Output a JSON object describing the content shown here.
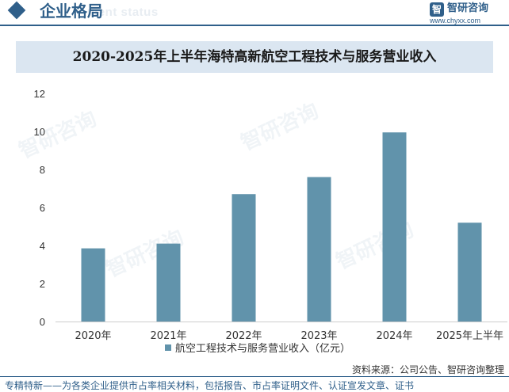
{
  "header": {
    "title": "企业格局",
    "subtitle": "ment status",
    "logo_name": "智研咨询",
    "logo_url": "www.chyxx.com",
    "logo_mark": "智"
  },
  "watermark": "智研咨询",
  "chart_data": {
    "type": "bar",
    "title": "2020-2025年上半年海特高新航空工程技术与服务营业收入",
    "categories": [
      "2020年",
      "2021年",
      "2022年",
      "2023年",
      "2024年",
      "2025年上半年"
    ],
    "series": [
      {
        "name": "航空工程技术与服务营业收入（亿元）",
        "values": [
          3.85,
          4.1,
          6.7,
          7.6,
          9.95,
          5.2
        ]
      }
    ],
    "ylim": [
      0,
      12
    ],
    "yticks": [
      "0",
      "2",
      "4",
      "6",
      "8",
      "10",
      "12"
    ],
    "grid": false,
    "legend": "bottom",
    "color": "#6193ab"
  },
  "footer": {
    "source": "资料来源：公司公告、智研咨询整理",
    "note": "专精特新——为各类企业提供市占率相关材料，包括报告、市占率证明文件、认证宣发文章、证书"
  }
}
